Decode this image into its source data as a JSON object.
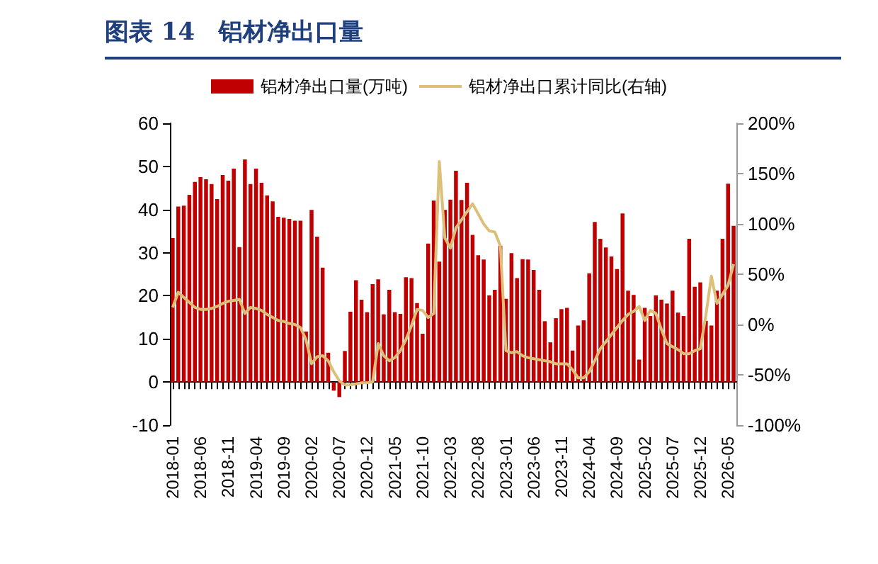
{
  "chart_data": {
    "type": "bar",
    "title": "图表 14　铝材净出口量",
    "categories": [
      "2018-01",
      null,
      null,
      null,
      null,
      "2018-06",
      null,
      null,
      null,
      null,
      "2018-11",
      null,
      null,
      null,
      null,
      "2019-04",
      null,
      null,
      null,
      null,
      "2019-09",
      null,
      null,
      null,
      null,
      "2020-02",
      null,
      null,
      null,
      null,
      "2020-07",
      null,
      null,
      null,
      null,
      "2020-12",
      null,
      null,
      null,
      null,
      "2021-05",
      null,
      null,
      null,
      null,
      "2021-10",
      null,
      null,
      null,
      null,
      "2022-03",
      null,
      null,
      null,
      null,
      "2022-08",
      null,
      null,
      null,
      null,
      "2023-01",
      null,
      null,
      null,
      null,
      "2023-06",
      null,
      null,
      null,
      null,
      "2023-11",
      null,
      null,
      null,
      null,
      "2024-04",
      null,
      null,
      null,
      null,
      "2024-09",
      null,
      null,
      null,
      null,
      "2025-02",
      null,
      null,
      null,
      null,
      "2025-07",
      null,
      null,
      null,
      null,
      "2025-12",
      null,
      null,
      null,
      null,
      "2026-05",
      null
    ],
    "series": [
      {
        "name": "铝材净出口量(万吨)",
        "color": "#c00000",
        "values": [
          33.4,
          40.7,
          40.9,
          43.4,
          46.4,
          47.5,
          47.0,
          45.9,
          42.4,
          48.0,
          46.7,
          49.5,
          31.3,
          51.6,
          45.9,
          49.5,
          46.2,
          43.3,
          41.9,
          38.3,
          38.1,
          37.8,
          37.4,
          37.4,
          11.7,
          39.9,
          33.7,
          26.5,
          6.8,
          -2.0,
          -3.5,
          7.2,
          16.3,
          23.6,
          19.1,
          16.2,
          22.7,
          23.8,
          15.7,
          21.4,
          16.2,
          15.8,
          24.3,
          24.1,
          18.3,
          11.2,
          32.1,
          42.1,
          27.9,
          39.9,
          42.3,
          49.0,
          42.2,
          46.2,
          34.1,
          29.4,
          28.4,
          20.1,
          21.4,
          31.6,
          19.3,
          29.9,
          24.1,
          28.5,
          28.4,
          26.0,
          21.4,
          14.1,
          9.2,
          14.8,
          16.9,
          17.2,
          7.3,
          13.1,
          14.3,
          25.2,
          37.1,
          33.2,
          31.2,
          29.1,
          26.2,
          39.1,
          21.2,
          20.2,
          5.2,
          17.2,
          15.3,
          20.1,
          19.1,
          18.2,
          21.2,
          16.1,
          15.3,
          33.2,
          22.1,
          23.1,
          14.2,
          13.1,
          21.2,
          33.2,
          46.0,
          36.2
        ]
      },
      {
        "name": "铝材净出口累计同比(右轴)",
        "type": "line",
        "axis": "y2",
        "color": "#dcc07a",
        "values": [
          17,
          32,
          27,
          22,
          17,
          15,
          15,
          16,
          18,
          21,
          23,
          24,
          25,
          11,
          17,
          16,
          14,
          10,
          7,
          4,
          3,
          1,
          0,
          -3,
          -15,
          -39,
          -32,
          -31,
          -36,
          -47,
          -56,
          -60,
          -60,
          -59,
          -58,
          -58,
          -57,
          -19,
          -31,
          -36,
          -33,
          -26,
          -15,
          -1,
          15,
          14,
          7,
          11,
          162,
          86,
          76,
          96,
          104,
          112,
          120,
          110,
          100,
          93,
          92,
          78,
          -26,
          -28,
          -27,
          -31,
          -33,
          -34,
          -35,
          -36,
          -37,
          -39,
          -39,
          -39,
          -45,
          -53,
          -53,
          -47,
          -36,
          -24,
          -17,
          -10,
          -3,
          4,
          10,
          13,
          18,
          4,
          14,
          11,
          -5,
          -19,
          -22,
          -25,
          -29,
          -29,
          -26,
          -24,
          9,
          48,
          21,
          30,
          39,
          60
        ]
      }
    ],
    "ylim": [
      -10,
      60
    ],
    "yticks": [
      -10,
      0,
      10,
      20,
      30,
      40,
      50,
      60
    ],
    "y2lim": [
      -100,
      200
    ],
    "y2ticks": [
      {
        "value": -100,
        "label": "-100%"
      },
      {
        "value": -50,
        "label": "-50%"
      },
      {
        "value": 0,
        "label": "0%"
      },
      {
        "value": 50,
        "label": "50%"
      },
      {
        "value": 100,
        "label": "100%"
      },
      {
        "value": 150,
        "label": "150%"
      },
      {
        "value": 200,
        "label": "200%"
      }
    ],
    "legend": "top",
    "marker": "none"
  }
}
